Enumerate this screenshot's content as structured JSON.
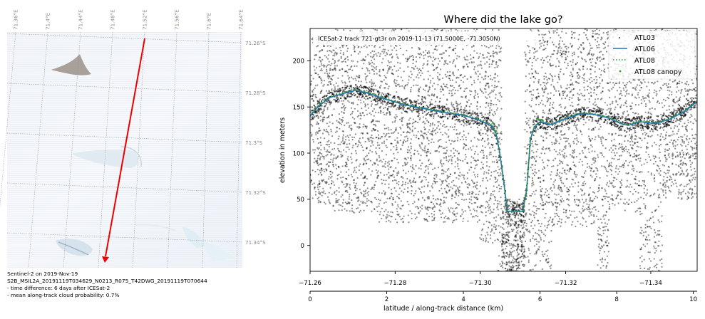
{
  "map_panel": {
    "lon_labels": [
      "71.36°E",
      "71.4°E",
      "71.44°E",
      "71.48°E",
      "71.52°E",
      "71.56°E",
      "71.6°E",
      "71.64°E"
    ],
    "lat_labels": [
      "71.26°S",
      "71.28°S",
      "71.3°S",
      "71.32°S",
      "71.34°S"
    ],
    "caption": [
      "Sentinel-2 on 2019-Nov-19",
      "S2B_MSIL2A_20191119T034629_N0213_R075_T42DWG_20191119T070644",
      "- time difference: 6 days after ICESat-2",
      "- mean along-track cloud probability: 0.7%"
    ],
    "track_color": "#ee0000"
  },
  "chart_data": {
    "type": "line",
    "title": "Where did the lake go?",
    "ylabel": "elevation in meters",
    "xlabel": "latitude / along-track distance (km)",
    "annotation": "ICESat-2 track 721-gt3r on 2019-11-13 (71.5000E, -71.3050N)",
    "xlim": [
      0,
      10.1
    ],
    "ylim": [
      -28,
      235
    ],
    "yticks": [
      0,
      50,
      100,
      150,
      200
    ],
    "xticks_distance": [
      0,
      2,
      4,
      6,
      8,
      10
    ],
    "xticks_latitude": [
      {
        "km": 0,
        "label": "−71.26"
      },
      {
        "km": 2.22,
        "label": "−71.28"
      },
      {
        "km": 4.44,
        "label": "−71.30"
      },
      {
        "km": 6.67,
        "label": "−71.32"
      },
      {
        "km": 8.89,
        "label": "−71.34"
      }
    ],
    "legend_placement": "upper-right",
    "series": [
      {
        "name": "ATL03",
        "style": "scatter",
        "color": "#000000"
      },
      {
        "name": "ATL06",
        "style": "line",
        "color": "#1f77b4",
        "x": [
          0,
          0.2,
          0.5,
          0.9,
          1.2,
          1.5,
          2,
          2.5,
          3,
          3.5,
          4,
          4.4,
          4.75,
          4.85,
          4.95,
          5.05,
          5.15,
          5.3,
          5.45,
          5.55,
          5.65,
          5.75,
          5.85,
          6,
          6.3,
          6.7,
          7.1,
          7.4,
          7.8,
          8.1,
          8.3,
          8.6,
          9,
          9.4,
          9.8,
          10.1
        ],
        "y": [
          140,
          150,
          160,
          165,
          168,
          165,
          158,
          152,
          148,
          144,
          141,
          136,
          129,
          122,
          100,
          70,
          37,
          37,
          37,
          37,
          60,
          115,
          128,
          134,
          131,
          138,
          143,
          142,
          138,
          132,
          130,
          134,
          132,
          137,
          146,
          156
        ]
      },
      {
        "name": "ATL08",
        "style": "dotted",
        "color": "#2ca02c",
        "x": [
          0,
          0.2,
          0.5,
          0.9,
          1.2,
          1.5,
          2,
          2.5,
          3,
          3.5,
          4,
          4.4,
          4.75,
          4.85,
          4.95,
          5.05,
          5.15,
          5.3,
          5.45,
          5.55,
          5.65,
          5.75,
          5.85,
          6,
          6.3,
          6.7,
          7.1,
          7.4,
          7.8,
          8.1,
          8.3,
          8.6,
          9,
          9.4,
          9.8,
          10.1
        ],
        "y": [
          141,
          151,
          161,
          166,
          169,
          166,
          159,
          153,
          149,
          145,
          142,
          137,
          131,
          124,
          100,
          70,
          37,
          37,
          37,
          37,
          60,
          115,
          129,
          135,
          132,
          139,
          144,
          143,
          139,
          133,
          131,
          135,
          133,
          138,
          147,
          157
        ]
      },
      {
        "name": "ATL08 canopy",
        "style": "points",
        "color": "#2ca02c",
        "x": [
          4.78,
          4.84,
          5.95,
          6.05
        ],
        "y": [
          132,
          124,
          137,
          136
        ]
      }
    ]
  }
}
